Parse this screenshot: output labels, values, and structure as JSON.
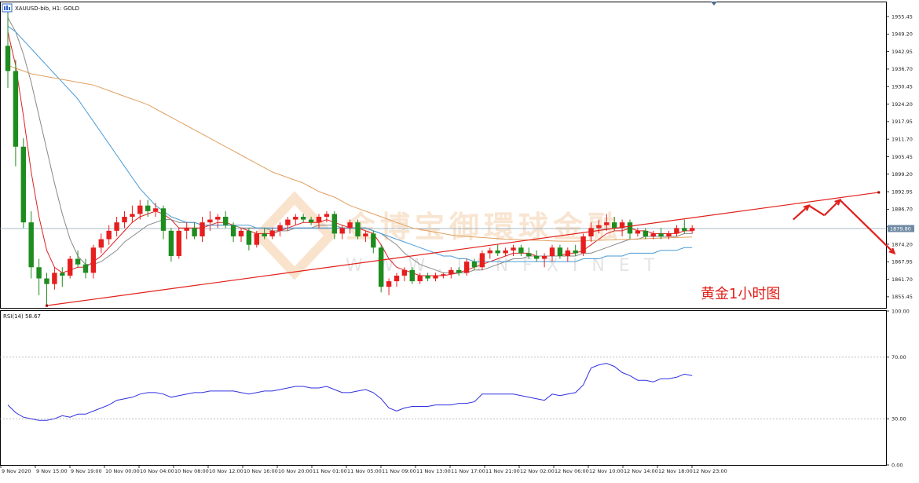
{
  "header": {
    "main_label": "XAUUSD-bib, H1:  GOLD",
    "rsi_label": "RSI(14) 58.67"
  },
  "annotation": "黄金1小时图",
  "watermark": {
    "cn": "金博宝御環球金融",
    "en": "WWW.JINFXINET"
  },
  "chart_data": {
    "type": "candlestick",
    "symbol": "XAUUSD-bib",
    "timeframe": "H1",
    "price_axis": {
      "ticks": [
        "1955.45",
        "1949.20",
        "1942.95",
        "1936.70",
        "1930.45",
        "1924.20",
        "1917.95",
        "1911.70",
        "1905.45",
        "1899.20",
        "1892.95",
        "1886.70",
        "1880.45",
        "1874.20",
        "1867.95",
        "1861.70",
        "1855.45"
      ],
      "ylim": [
        1851.5,
        1960.5
      ],
      "current_price": "1879.80"
    },
    "rsi_axis": {
      "ticks": [
        "100.00",
        "70.00",
        "30.00",
        "0.00"
      ],
      "ylim": [
        0,
        100
      ],
      "levels": [
        70,
        30
      ]
    },
    "time_axis": [
      "9 Nov 2020",
      "9 Nov 15:00",
      "9 Nov 19:00",
      "10 Nov 00:00",
      "10 Nov 04:00",
      "10 Nov 08:00",
      "10 Nov 12:00",
      "10 Nov 16:00",
      "10 Nov 20:00",
      "11 Nov 01:00",
      "11 Nov 05:00",
      "11 Nov 09:00",
      "11 Nov 13:00",
      "11 Nov 17:00",
      "11 Nov 21:00",
      "12 Nov 02:00",
      "12 Nov 06:00",
      "12 Nov 10:00",
      "12 Nov 14:00",
      "12 Nov 18:00",
      "12 Nov 23:00"
    ],
    "candles": [
      {
        "o": 1945.0,
        "h": 1958.0,
        "l": 1930.0,
        "c": 1936.0
      },
      {
        "o": 1936.0,
        "h": 1940.0,
        "l": 1902.0,
        "c": 1909.0
      },
      {
        "o": 1909.0,
        "h": 1912.0,
        "l": 1880.0,
        "c": 1882.0
      },
      {
        "o": 1882.0,
        "h": 1886.0,
        "l": 1862.0,
        "c": 1866.0
      },
      {
        "o": 1866.0,
        "h": 1869.0,
        "l": 1856.0,
        "c": 1862.0
      },
      {
        "o": 1862.0,
        "h": 1864.0,
        "l": 1852.0,
        "c": 1860.0
      },
      {
        "o": 1860.0,
        "h": 1866.0,
        "l": 1858.0,
        "c": 1864.0
      },
      {
        "o": 1864.0,
        "h": 1866.0,
        "l": 1859.0,
        "c": 1863.0
      },
      {
        "o": 1863.0,
        "h": 1870.0,
        "l": 1862.0,
        "c": 1869.0
      },
      {
        "o": 1869.0,
        "h": 1872.0,
        "l": 1866.0,
        "c": 1867.0
      },
      {
        "o": 1867.0,
        "h": 1869.0,
        "l": 1862.0,
        "c": 1864.0
      },
      {
        "o": 1864.0,
        "h": 1874.0,
        "l": 1862.0,
        "c": 1873.0
      },
      {
        "o": 1873.0,
        "h": 1878.0,
        "l": 1871.0,
        "c": 1876.0
      },
      {
        "o": 1876.0,
        "h": 1881.0,
        "l": 1874.0,
        "c": 1879.0
      },
      {
        "o": 1879.0,
        "h": 1884.0,
        "l": 1877.0,
        "c": 1882.0
      },
      {
        "o": 1882.0,
        "h": 1886.0,
        "l": 1880.0,
        "c": 1884.0
      },
      {
        "o": 1884.0,
        "h": 1888.0,
        "l": 1882.0,
        "c": 1885.0
      },
      {
        "o": 1885.0,
        "h": 1890.0,
        "l": 1883.0,
        "c": 1888.0
      },
      {
        "o": 1888.0,
        "h": 1890.0,
        "l": 1884.0,
        "c": 1886.0
      },
      {
        "o": 1886.0,
        "h": 1889.0,
        "l": 1884.0,
        "c": 1887.0
      },
      {
        "o": 1887.0,
        "h": 1888.0,
        "l": 1876.0,
        "c": 1879.0
      },
      {
        "o": 1879.0,
        "h": 1880.0,
        "l": 1868.0,
        "c": 1870.0
      },
      {
        "o": 1870.0,
        "h": 1880.0,
        "l": 1869.0,
        "c": 1879.0
      },
      {
        "o": 1879.0,
        "h": 1882.0,
        "l": 1876.0,
        "c": 1880.0
      },
      {
        "o": 1880.0,
        "h": 1882.0,
        "l": 1876.0,
        "c": 1877.0
      },
      {
        "o": 1877.0,
        "h": 1884.0,
        "l": 1875.0,
        "c": 1882.0
      },
      {
        "o": 1882.0,
        "h": 1886.0,
        "l": 1879.0,
        "c": 1883.0
      },
      {
        "o": 1883.0,
        "h": 1885.0,
        "l": 1880.0,
        "c": 1884.0
      },
      {
        "o": 1884.0,
        "h": 1886.0,
        "l": 1880.0,
        "c": 1881.0
      },
      {
        "o": 1881.0,
        "h": 1882.0,
        "l": 1875.0,
        "c": 1877.0
      },
      {
        "o": 1877.0,
        "h": 1880.0,
        "l": 1875.0,
        "c": 1879.0
      },
      {
        "o": 1879.0,
        "h": 1880.0,
        "l": 1872.0,
        "c": 1874.0
      },
      {
        "o": 1874.0,
        "h": 1879.0,
        "l": 1873.0,
        "c": 1878.0
      },
      {
        "o": 1878.0,
        "h": 1880.0,
        "l": 1876.0,
        "c": 1877.0
      },
      {
        "o": 1877.0,
        "h": 1880.0,
        "l": 1876.0,
        "c": 1879.0
      },
      {
        "o": 1879.0,
        "h": 1882.0,
        "l": 1877.0,
        "c": 1881.0
      },
      {
        "o": 1881.0,
        "h": 1884.0,
        "l": 1879.0,
        "c": 1883.0
      },
      {
        "o": 1883.0,
        "h": 1885.0,
        "l": 1881.0,
        "c": 1884.0
      },
      {
        "o": 1884.0,
        "h": 1885.0,
        "l": 1882.0,
        "c": 1883.0
      },
      {
        "o": 1883.0,
        "h": 1884.0,
        "l": 1881.0,
        "c": 1882.0
      },
      {
        "o": 1882.0,
        "h": 1885.0,
        "l": 1880.0,
        "c": 1884.0
      },
      {
        "o": 1884.0,
        "h": 1886.0,
        "l": 1882.0,
        "c": 1885.0
      },
      {
        "o": 1885.0,
        "h": 1886.0,
        "l": 1876.0,
        "c": 1878.0
      },
      {
        "o": 1878.0,
        "h": 1881.0,
        "l": 1876.0,
        "c": 1880.0
      },
      {
        "o": 1880.0,
        "h": 1883.0,
        "l": 1878.0,
        "c": 1882.0
      },
      {
        "o": 1882.0,
        "h": 1883.0,
        "l": 1876.0,
        "c": 1877.0
      },
      {
        "o": 1877.0,
        "h": 1879.0,
        "l": 1875.0,
        "c": 1878.0
      },
      {
        "o": 1878.0,
        "h": 1879.0,
        "l": 1871.0,
        "c": 1873.0
      },
      {
        "o": 1873.0,
        "h": 1874.0,
        "l": 1857.0,
        "c": 1859.0
      },
      {
        "o": 1859.0,
        "h": 1862.0,
        "l": 1856.0,
        "c": 1861.0
      },
      {
        "o": 1861.0,
        "h": 1864.0,
        "l": 1859.0,
        "c": 1863.0
      },
      {
        "o": 1863.0,
        "h": 1866.0,
        "l": 1861.0,
        "c": 1865.0
      },
      {
        "o": 1865.0,
        "h": 1866.0,
        "l": 1860.0,
        "c": 1861.0
      },
      {
        "o": 1861.0,
        "h": 1864.0,
        "l": 1860.0,
        "c": 1863.0
      },
      {
        "o": 1863.0,
        "h": 1864.0,
        "l": 1861.0,
        "c": 1862.0
      },
      {
        "o": 1862.0,
        "h": 1864.0,
        "l": 1861.0,
        "c": 1863.0
      },
      {
        "o": 1863.0,
        "h": 1864.0,
        "l": 1862.0,
        "c": 1863.5
      },
      {
        "o": 1863.5,
        "h": 1866.0,
        "l": 1862.0,
        "c": 1865.0
      },
      {
        "o": 1865.0,
        "h": 1866.0,
        "l": 1863.0,
        "c": 1864.0
      },
      {
        "o": 1864.0,
        "h": 1869.0,
        "l": 1863.0,
        "c": 1868.0
      },
      {
        "o": 1868.0,
        "h": 1869.0,
        "l": 1865.0,
        "c": 1866.0
      },
      {
        "o": 1866.0,
        "h": 1872.0,
        "l": 1865.0,
        "c": 1871.0
      },
      {
        "o": 1871.0,
        "h": 1873.0,
        "l": 1869.0,
        "c": 1872.0
      },
      {
        "o": 1872.0,
        "h": 1874.0,
        "l": 1870.0,
        "c": 1871.0
      },
      {
        "o": 1871.0,
        "h": 1873.0,
        "l": 1870.0,
        "c": 1872.0
      },
      {
        "o": 1872.0,
        "h": 1874.0,
        "l": 1870.0,
        "c": 1873.0
      },
      {
        "o": 1873.0,
        "h": 1874.0,
        "l": 1870.0,
        "c": 1871.0
      },
      {
        "o": 1871.0,
        "h": 1873.0,
        "l": 1869.0,
        "c": 1870.0
      },
      {
        "o": 1870.0,
        "h": 1872.0,
        "l": 1868.0,
        "c": 1869.0
      },
      {
        "o": 1869.0,
        "h": 1871.0,
        "l": 1866.0,
        "c": 1870.0
      },
      {
        "o": 1870.0,
        "h": 1874.0,
        "l": 1868.0,
        "c": 1873.0
      },
      {
        "o": 1873.0,
        "h": 1874.0,
        "l": 1869.0,
        "c": 1870.0
      },
      {
        "o": 1870.0,
        "h": 1873.0,
        "l": 1868.0,
        "c": 1872.0
      },
      {
        "o": 1872.0,
        "h": 1874.0,
        "l": 1870.0,
        "c": 1871.0
      },
      {
        "o": 1871.0,
        "h": 1878.0,
        "l": 1870.0,
        "c": 1877.0
      },
      {
        "o": 1877.0,
        "h": 1882.0,
        "l": 1875.0,
        "c": 1880.0
      },
      {
        "o": 1880.0,
        "h": 1883.0,
        "l": 1878.0,
        "c": 1881.0
      },
      {
        "o": 1881.0,
        "h": 1885.0,
        "l": 1879.0,
        "c": 1882.0
      },
      {
        "o": 1882.0,
        "h": 1884.0,
        "l": 1879.0,
        "c": 1880.0
      },
      {
        "o": 1880.0,
        "h": 1883.0,
        "l": 1877.0,
        "c": 1882.0
      },
      {
        "o": 1882.0,
        "h": 1883.0,
        "l": 1876.0,
        "c": 1878.0
      },
      {
        "o": 1878.0,
        "h": 1880.0,
        "l": 1877.0,
        "c": 1879.0
      },
      {
        "o": 1879.0,
        "h": 1880.0,
        "l": 1876.0,
        "c": 1877.0
      },
      {
        "o": 1877.0,
        "h": 1879.0,
        "l": 1876.0,
        "c": 1878.0
      },
      {
        "o": 1878.0,
        "h": 1880.0,
        "l": 1876.0,
        "c": 1877.0
      },
      {
        "o": 1877.0,
        "h": 1879.0,
        "l": 1876.0,
        "c": 1878.0
      },
      {
        "o": 1878.0,
        "h": 1881.0,
        "l": 1877.0,
        "c": 1880.0
      },
      {
        "o": 1880.0,
        "h": 1883.0,
        "l": 1878.0,
        "c": 1879.0
      },
      {
        "o": 1879.0,
        "h": 1881.0,
        "l": 1878.0,
        "c": 1880.0
      }
    ],
    "moving_averages": [
      {
        "color": "#e02020",
        "values": [
          1950,
          1938,
          1920,
          1900,
          1884,
          1872,
          1866,
          1864,
          1865,
          1866,
          1866,
          1868,
          1870,
          1873,
          1876,
          1879,
          1882,
          1884,
          1885,
          1886,
          1885,
          1883,
          1880,
          1880,
          1880,
          1880,
          1881,
          1882,
          1882,
          1881,
          1880,
          1879,
          1878,
          1878,
          1878,
          1879,
          1880,
          1881,
          1882,
          1882,
          1882,
          1883,
          1882,
          1881,
          1880,
          1880,
          1879,
          1878,
          1874,
          1869,
          1866,
          1865,
          1864,
          1863,
          1863,
          1863,
          1863,
          1863.5,
          1864,
          1865,
          1866,
          1867,
          1868,
          1869,
          1870,
          1871,
          1871,
          1871,
          1870,
          1870,
          1870,
          1870,
          1871,
          1871,
          1872,
          1874,
          1876,
          1878,
          1879,
          1879,
          1880,
          1879,
          1879,
          1878,
          1878,
          1878,
          1878,
          1879,
          1879
        ]
      },
      {
        "color": "#888888",
        "values": [
          1955,
          1950,
          1942,
          1932,
          1920,
          1908,
          1896,
          1885,
          1876,
          1870,
          1867,
          1867,
          1868,
          1870,
          1872,
          1875,
          1877,
          1879,
          1881,
          1882,
          1883,
          1883,
          1882,
          1882,
          1882,
          1881,
          1881,
          1881,
          1881,
          1881,
          1880,
          1880,
          1880,
          1880,
          1879,
          1879,
          1879,
          1880,
          1880,
          1880,
          1881,
          1881,
          1881,
          1880,
          1880,
          1880,
          1880,
          1879,
          1878,
          1876,
          1874,
          1871,
          1869,
          1867,
          1866,
          1865,
          1864,
          1864,
          1864,
          1864,
          1865,
          1865,
          1866,
          1867,
          1868,
          1869,
          1869,
          1870,
          1870,
          1870,
          1870,
          1870,
          1870,
          1870,
          1871,
          1871,
          1872,
          1873,
          1874,
          1875,
          1876,
          1876,
          1877,
          1877,
          1877,
          1877,
          1877,
          1878,
          1878
        ]
      },
      {
        "color": "#4a9bd6",
        "values": [
          1952,
          1950,
          1947,
          1944,
          1941,
          1938,
          1935,
          1932,
          1929,
          1926,
          1922,
          1918,
          1914,
          1910,
          1906,
          1902,
          1898,
          1894,
          1891,
          1888,
          1886,
          1884,
          1883,
          1882,
          1882,
          1881,
          1881,
          1881,
          1881,
          1881,
          1881,
          1881,
          1880,
          1880,
          1880,
          1880,
          1880,
          1880,
          1880,
          1880,
          1880,
          1880,
          1880,
          1880,
          1880,
          1880,
          1880,
          1879,
          1878,
          1877,
          1876,
          1875,
          1874,
          1873,
          1872,
          1871,
          1870,
          1870,
          1869,
          1869,
          1868,
          1868,
          1868,
          1868,
          1868,
          1868,
          1868,
          1868,
          1868,
          1868,
          1868,
          1868,
          1868,
          1868,
          1869,
          1869,
          1869,
          1870,
          1870,
          1870,
          1871,
          1871,
          1871,
          1871,
          1872,
          1872,
          1872,
          1873,
          1873
        ]
      },
      {
        "color": "#e0a060",
        "values": [
          1938,
          1937,
          1936,
          1935,
          1934.5,
          1934,
          1933.5,
          1933,
          1932.5,
          1932,
          1931.5,
          1931,
          1930,
          1929,
          1928,
          1927,
          1926,
          1925,
          1924,
          1922.5,
          1921,
          1919.5,
          1918,
          1916.5,
          1915,
          1913.5,
          1912,
          1910.5,
          1909,
          1907.5,
          1906,
          1904.5,
          1903,
          1901.5,
          1900,
          1899,
          1898,
          1897,
          1896,
          1894.5,
          1893,
          1892,
          1891,
          1889.5,
          1888,
          1887,
          1886,
          1885,
          1884,
          1883,
          1882,
          1881,
          1880,
          1879.5,
          1879,
          1878.5,
          1878,
          1877.5,
          1877.2,
          1877,
          1876.8,
          1876.6,
          1876.4,
          1876.2,
          1876,
          1875.9,
          1875.8,
          1875.7,
          1875.6,
          1875.5,
          1875.4,
          1875.3,
          1875.3,
          1875.3,
          1875.4,
          1875.5,
          1875.6,
          1875.7,
          1875.8,
          1875.9,
          1876,
          1876.1,
          1876.2,
          1876.3,
          1876.4,
          1876.5,
          1876.6,
          1876.7,
          1876.8
        ]
      }
    ],
    "rsi_values": [
      39,
      34,
      31,
      30,
      29,
      29,
      30,
      32,
      31,
      33,
      33,
      35,
      37,
      39,
      42,
      43,
      44,
      46,
      47,
      47,
      46,
      44,
      45,
      46,
      47,
      47,
      48,
      48,
      48,
      48,
      47,
      46,
      47,
      48,
      48,
      49,
      50,
      51,
      51,
      50,
      50,
      51,
      49,
      47,
      47,
      48,
      49,
      47,
      43,
      37,
      35,
      37,
      38,
      38,
      38,
      39,
      39,
      39,
      40,
      40,
      41,
      46,
      46,
      46,
      46,
      46,
      45,
      44,
      43,
      42,
      46,
      45,
      46,
      47,
      52,
      63,
      65,
      66,
      64,
      60,
      58,
      55,
      55,
      54,
      56,
      56,
      57,
      59,
      58
    ],
    "trendlines": [
      {
        "from": {
          "i": 5,
          "p": 1852.3
        },
        "to": {
          "i": 112,
          "p": 1892.7
        }
      }
    ],
    "projection_arrow": [
      {
        "i": 101,
        "p": 1883
      },
      {
        "i": 103,
        "p": 1888
      },
      {
        "i": 105,
        "p": 1884.5
      },
      {
        "i": 107,
        "p": 1890
      },
      {
        "i": 114,
        "p": 1871
      }
    ]
  }
}
